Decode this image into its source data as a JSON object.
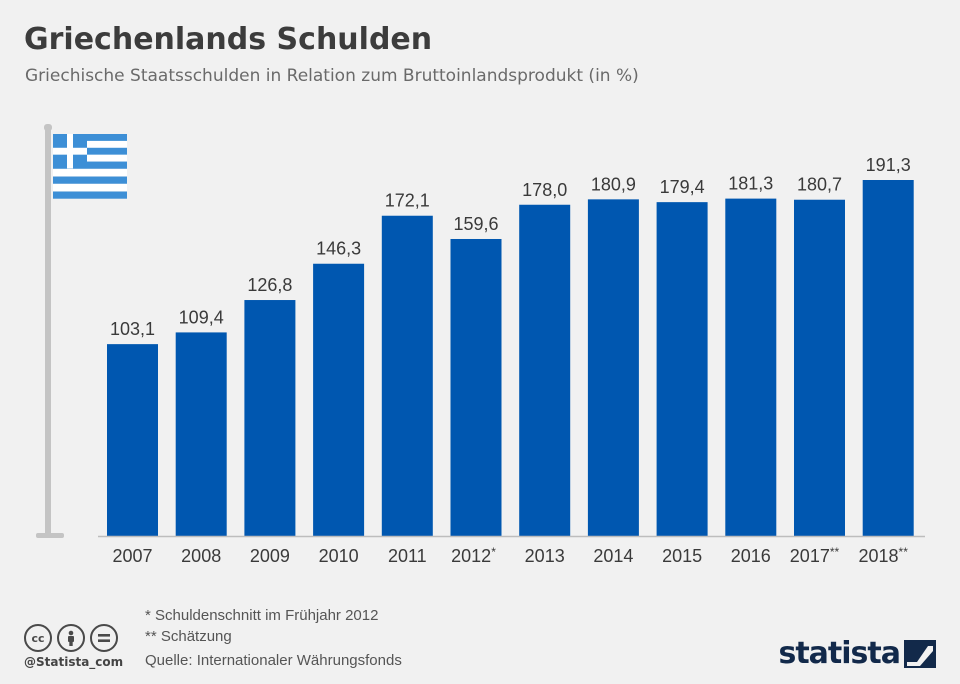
{
  "header": {
    "title": "Griechenlands Schulden",
    "subtitle": "Griechische Staatsschulden in Relation zum Bruttoinlandsprodukt (in %)"
  },
  "chart_data": {
    "type": "bar",
    "title": "Griechenlands Schulden",
    "subtitle": "Griechische Staatsschulden in Relation zum Bruttoinlandsprodukt (in %)",
    "categories": [
      "2007",
      "2008",
      "2009",
      "2010",
      "2011",
      "2012*",
      "2013",
      "2014",
      "2015",
      "2016",
      "2017**",
      "2018**"
    ],
    "values": [
      103.1,
      109.4,
      126.8,
      146.3,
      172.1,
      159.6,
      178.0,
      180.9,
      179.4,
      181.3,
      180.7,
      191.3
    ],
    "data_labels": [
      "103,1",
      "109,4",
      "126,8",
      "146,3",
      "172,1",
      "159,6",
      "178,0",
      "180,9",
      "179,4",
      "181,3",
      "180,7",
      "191,3"
    ],
    "ylim": [
      0,
      200
    ],
    "grid": false,
    "bar_color": "#0057b0"
  },
  "footnotes": {
    "note1": "*   Schuldenschnitt im Frühjahr 2012",
    "note2": "** Schätzung",
    "source": "Quelle: Internationaler Währungsfonds"
  },
  "license": {
    "icons": [
      "cc-icon",
      "by-icon",
      "nd-icon"
    ],
    "cc_label": "cc",
    "handle": "@Statista_com"
  },
  "brand": {
    "name": "statista"
  },
  "colors": {
    "background": "#f1f1f1",
    "bar": "#0057b0",
    "flag_blue": "#3d8fd6",
    "title": "#3c3c3c"
  }
}
